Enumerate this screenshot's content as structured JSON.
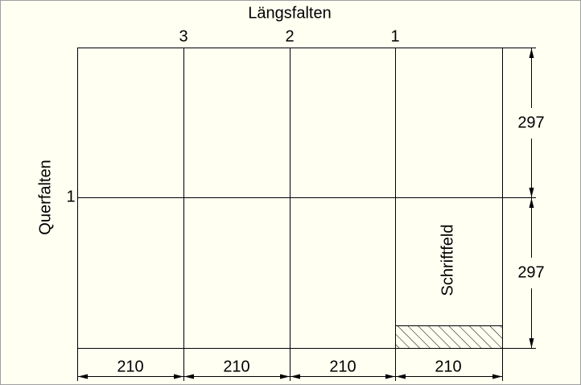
{
  "header": {
    "title": "Längsfalten"
  },
  "side_label": "Querfalten",
  "fold_columns": [
    3,
    2,
    1
  ],
  "fold_rows": [
    1
  ],
  "dimensions": {
    "widths": [
      210,
      210,
      210,
      210
    ],
    "heights": [
      297,
      297
    ]
  },
  "title_block": "Schriftfeld"
}
